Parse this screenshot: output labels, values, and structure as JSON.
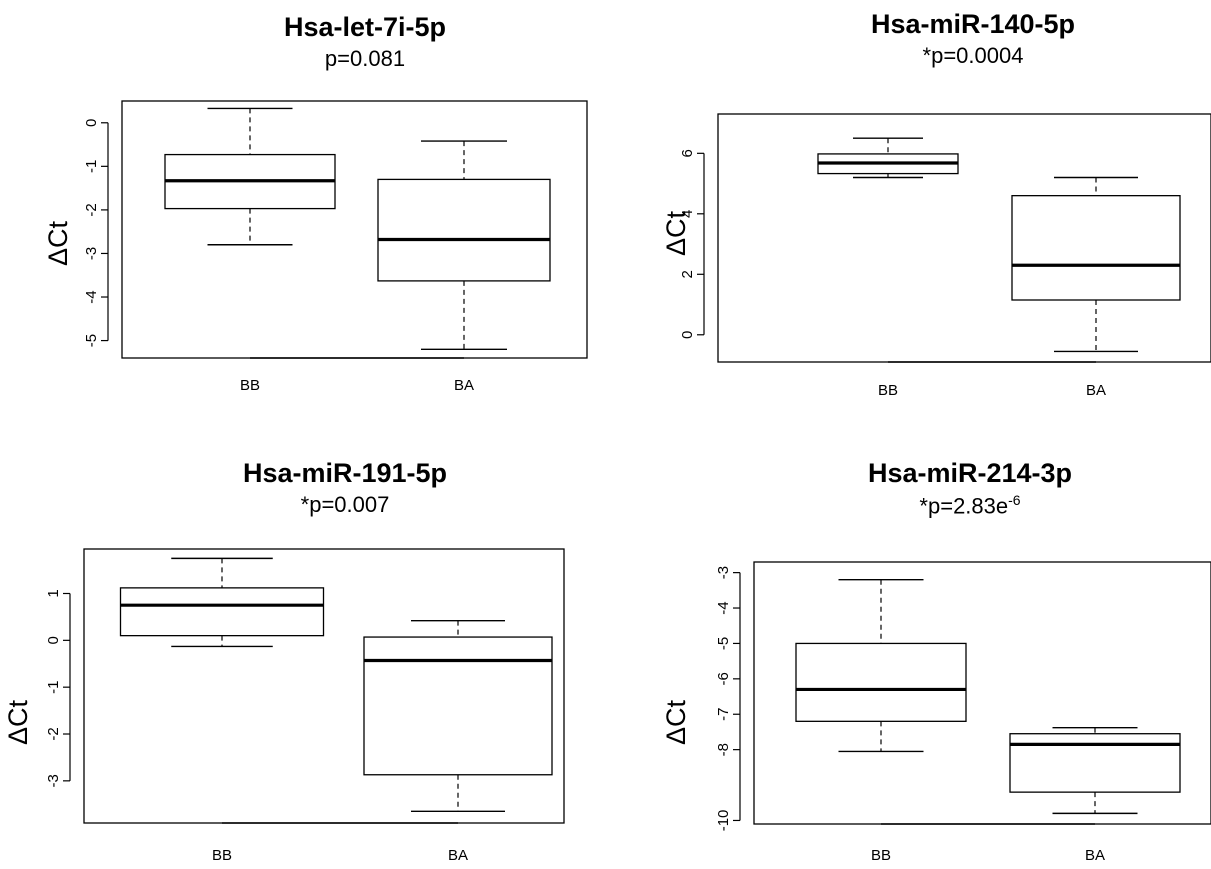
{
  "chart_data": [
    {
      "type": "box",
      "title": "Hsa-let-7i-5p",
      "subtitle": "p=0.081",
      "ylabel": "ΔCt",
      "categories": [
        "BB",
        "BA"
      ],
      "yticks": [
        0,
        -1,
        -2,
        -3,
        -4,
        -5
      ],
      "ylim": [
        -5.4,
        0.5
      ],
      "boxes": [
        {
          "category": "BB",
          "min": -2.8,
          "q1": -1.97,
          "median": -1.33,
          "q3": -0.73,
          "max": 0.33
        },
        {
          "category": "BA",
          "min": -5.2,
          "q1": -3.63,
          "median": -2.68,
          "q3": -1.3,
          "max": -0.42
        }
      ]
    },
    {
      "type": "box",
      "title": "Hsa-miR-140-5p",
      "subtitle": "*p=0.0004",
      "ylabel": "ΔCt",
      "categories": [
        "BB",
        "BA"
      ],
      "yticks": [
        6,
        4,
        2,
        0
      ],
      "ylim": [
        -0.9,
        7.3
      ],
      "boxes": [
        {
          "category": "BB",
          "min": 5.2,
          "q1": 5.33,
          "median": 5.68,
          "q3": 5.98,
          "max": 6.5
        },
        {
          "category": "BA",
          "min": -0.55,
          "q1": 1.15,
          "median": 2.3,
          "q3": 4.6,
          "max": 5.2
        }
      ]
    },
    {
      "type": "box",
      "title": "Hsa-miR-191-5p",
      "subtitle": "*p=0.007",
      "subtitle_parts": {
        "base": "*p=0.007",
        "sup": ""
      },
      "ylabel": "ΔCt",
      "categories": [
        "BB",
        "BA"
      ],
      "yticks": [
        1,
        0,
        -1,
        -2,
        -3
      ],
      "ylim": [
        -3.9,
        1.95
      ],
      "boxes": [
        {
          "category": "BB",
          "min": -0.13,
          "q1": 0.1,
          "median": 0.75,
          "q3": 1.12,
          "max": 1.75
        },
        {
          "category": "BA",
          "min": -3.65,
          "q1": -2.87,
          "median": -0.43,
          "q3": 0.07,
          "max": 0.42
        }
      ]
    },
    {
      "type": "box",
      "title": "Hsa-miR-214-3p",
      "subtitle": "*p=2.83e",
      "subtitle_sup": "-6",
      "ylabel": "ΔCt",
      "categories": [
        "BB",
        "BA"
      ],
      "yticks": [
        -3,
        -4,
        -5,
        -6,
        -7,
        -8,
        -10
      ],
      "ylim": [
        -10.1,
        -2.7
      ],
      "boxes": [
        {
          "category": "BB",
          "min": -8.05,
          "q1": -7.2,
          "median": -6.3,
          "q3": -5.0,
          "max": -3.2
        },
        {
          "category": "BA",
          "min": -9.8,
          "q1": -9.2,
          "median": -7.85,
          "q3": -7.55,
          "max": -7.38
        }
      ]
    }
  ]
}
